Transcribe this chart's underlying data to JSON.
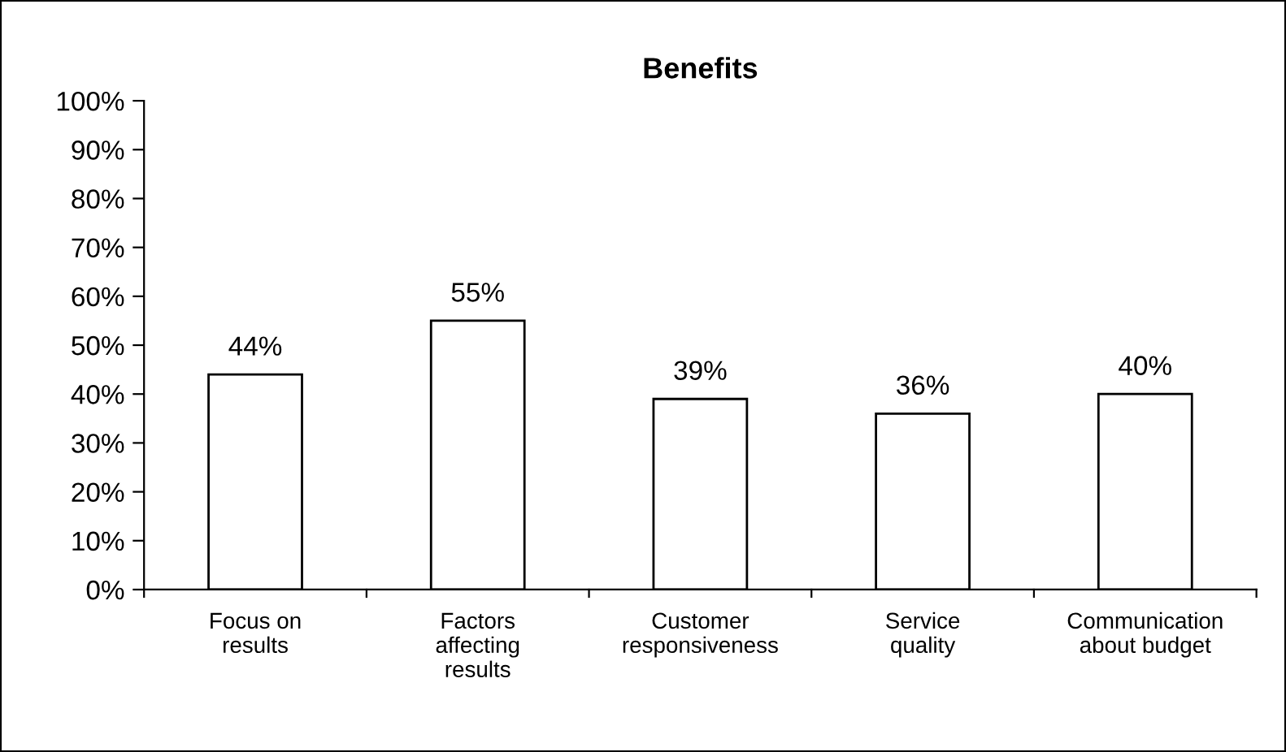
{
  "chart_data": {
    "type": "bar",
    "title": "Benefits",
    "categories": [
      "Focus on\nresults",
      "Factors\naffecting\nresults",
      "Customer\nresponsiveness",
      "Service\nquality",
      "Communication\nabout budget"
    ],
    "values": [
      44,
      55,
      39,
      36,
      40
    ],
    "value_labels": [
      "44%",
      "55%",
      "39%",
      "36%",
      "40%"
    ],
    "color": "#ffffff",
    "ylim": [
      0,
      100
    ],
    "yticks": [
      {
        "value": 0,
        "label": "0%"
      },
      {
        "value": 10,
        "label": "10%"
      },
      {
        "value": 20,
        "label": "20%"
      },
      {
        "value": 30,
        "label": "30%"
      },
      {
        "value": 40,
        "label": "40%"
      },
      {
        "value": 50,
        "label": "50%"
      },
      {
        "value": 60,
        "label": "60%"
      },
      {
        "value": 70,
        "label": "70%"
      },
      {
        "value": 80,
        "label": "80%"
      },
      {
        "value": 90,
        "label": "90%"
      },
      {
        "value": 100,
        "label": "100%"
      }
    ],
    "grid": false,
    "legend": false
  }
}
